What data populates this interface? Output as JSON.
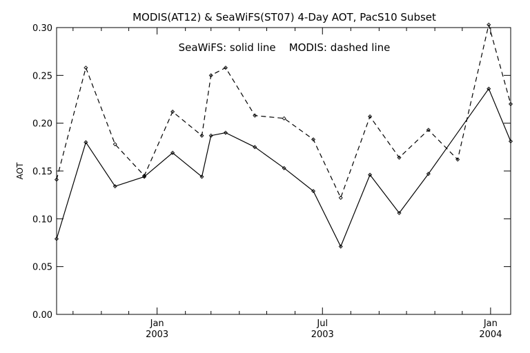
{
  "chart_data": {
    "type": "line",
    "title": "MODIS(AT12) & SeaWiFS(ST07) 4-Day AOT, PacS10 Subset",
    "annotation": "SeaWiFS: solid line    MODIS: dashed line",
    "xlabel": "",
    "ylabel": "AOT",
    "xlim": [
      "2002-09-13",
      "2004-01-23"
    ],
    "ylim": [
      0,
      0.3
    ],
    "y_ticks": [
      "0.00",
      "0.05",
      "0.10",
      "0.15",
      "0.20",
      "0.25",
      "0.30"
    ],
    "x_ticks": [
      {
        "date": "2003-01-01",
        "month": "Jan",
        "year": "2003"
      },
      {
        "date": "2003-07-01",
        "month": "Jul",
        "year": "2003"
      },
      {
        "date": "2004-01-01",
        "month": "Jan",
        "year": "2004"
      }
    ],
    "x_minor_ticks": [
      "2002-10-01",
      "2002-11-01",
      "2002-12-01",
      "2003-02-01",
      "2003-03-01",
      "2003-04-01",
      "2003-05-01",
      "2003-06-01",
      "2003-08-01",
      "2003-09-01",
      "2003-10-01",
      "2003-11-01",
      "2003-12-01"
    ],
    "grid": false,
    "series": [
      {
        "name": "SeaWiFS",
        "line_style": "solid",
        "x": [
          "2002-09-13",
          "2002-10-15",
          "2002-11-16",
          "2002-12-18",
          "2003-01-18",
          "2003-02-19",
          "2003-03-01",
          "2003-03-17",
          "2003-04-18",
          "2003-05-20",
          "2003-06-21",
          "2003-07-21",
          "2003-08-22",
          "2003-09-23",
          "2003-10-25",
          "2003-12-30",
          "2004-01-23"
        ],
        "values": [
          0.079,
          0.18,
          0.134,
          0.144,
          0.169,
          0.144,
          0.187,
          0.19,
          0.175,
          0.153,
          0.129,
          0.071,
          0.146,
          0.106,
          0.147,
          0.236,
          0.181
        ]
      },
      {
        "name": "MODIS",
        "line_style": "dashed",
        "x": [
          "2002-09-13",
          "2002-10-15",
          "2002-11-16",
          "2002-12-18",
          "2003-01-18",
          "2003-02-19",
          "2003-03-01",
          "2003-03-17",
          "2003-04-18",
          "2003-05-20",
          "2003-06-21",
          "2003-07-21",
          "2003-08-22",
          "2003-09-23",
          "2003-10-25",
          "2003-11-26",
          "2003-12-30",
          "2004-01-23"
        ],
        "values": [
          0.141,
          0.258,
          0.178,
          0.145,
          0.212,
          0.187,
          0.25,
          0.258,
          0.208,
          0.205,
          0.183,
          0.122,
          0.207,
          0.164,
          0.193,
          0.162,
          0.303,
          0.22
        ]
      }
    ]
  }
}
